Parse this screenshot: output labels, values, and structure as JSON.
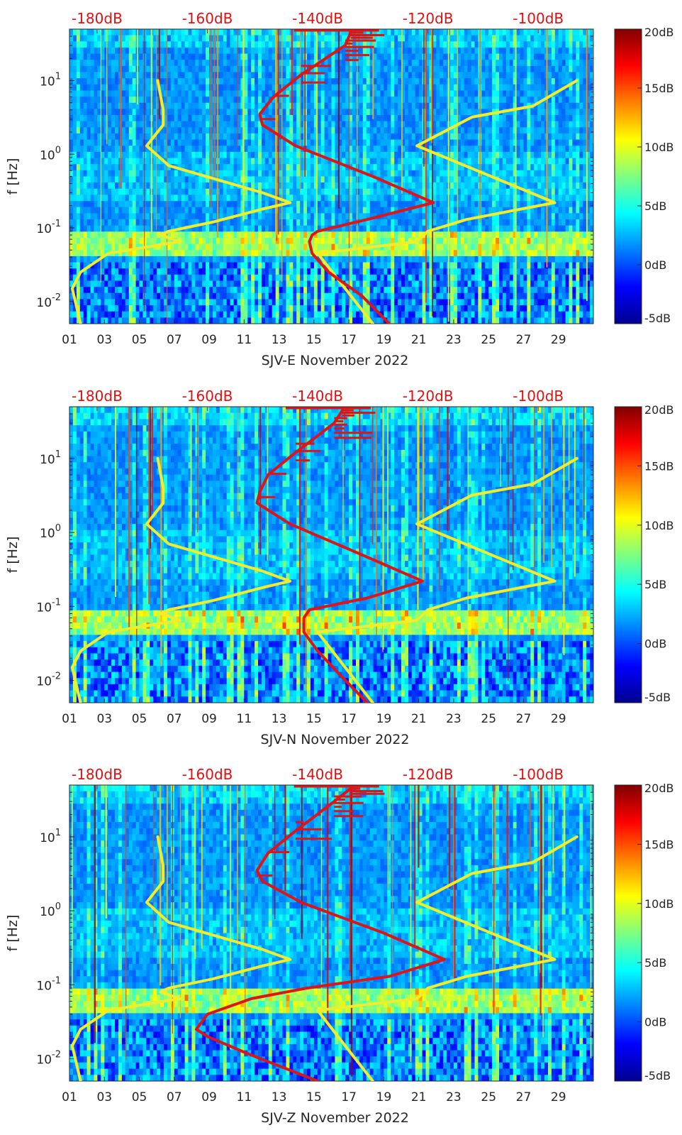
{
  "colors": {
    "background_ramp": [
      "#00008f",
      "#0000ff",
      "#0080ff",
      "#00ffff",
      "#80ff80",
      "#ffff00",
      "#ff8000",
      "#ff0000",
      "#800000"
    ],
    "noise_model_low_high": "#f2ec2a",
    "psd_reference": "#e01414",
    "text": "#262626"
  },
  "chart_data": [
    {
      "type": "heatmap",
      "title": "SJV-E November 2022",
      "xlabel": "SJV-E November 2022",
      "ylabel": "f [Hz]",
      "x_ticks": [
        "01",
        "03",
        "05",
        "07",
        "09",
        "11",
        "13",
        "15",
        "17",
        "19",
        "21",
        "23",
        "25",
        "27",
        "29"
      ],
      "y_ticks": [
        "10^-2",
        "10^-1",
        "10^0",
        "10^1"
      ],
      "y_scale": "log",
      "ylim_hz": [
        0.005,
        50
      ],
      "xlim_day": [
        1,
        31
      ],
      "top_axis_ticks": [
        "-180dB",
        "-160dB",
        "-140dB",
        "-120dB",
        "-100dB"
      ],
      "top_axis_range_db": [
        -185,
        -90
      ],
      "colorbar": {
        "ticks": [
          "20dB",
          "15dB",
          "10dB",
          "5dB",
          "0dB",
          "-5dB"
        ],
        "range_db": [
          -5,
          20
        ]
      },
      "series": [
        {
          "role": "low-noise-model",
          "color": "#f2ec2a",
          "points": [
            [
              -183.0,
              0.005
            ],
            [
              -184.5,
              0.015
            ],
            [
              -183.0,
              0.025
            ],
            [
              -178.0,
              0.045
            ],
            [
              -165.0,
              0.065
            ],
            [
              -168.5,
              0.08
            ],
            [
              -167.0,
              0.09
            ],
            [
              -159.0,
              0.12
            ],
            [
              -150.0,
              0.18
            ],
            [
              -145.0,
              0.22
            ],
            [
              -150.0,
              0.3
            ],
            [
              -167.0,
              0.7
            ],
            [
              -171.0,
              1.3
            ],
            [
              -168.0,
              2.5
            ],
            [
              -168.0,
              4.0
            ],
            [
              -169.0,
              10.0
            ]
          ]
        },
        {
          "role": "high-noise-model",
          "color": "#f2ec2a",
          "points": [
            [
              -130.0,
              0.005
            ],
            [
              -140.0,
              0.045
            ],
            [
              -122.0,
              0.065
            ],
            [
              -120.0,
              0.09
            ],
            [
              -113.0,
              0.13
            ],
            [
              -97.0,
              0.22
            ],
            [
              -122.0,
              1.3
            ],
            [
              -112.0,
              3.2
            ],
            [
              -101.0,
              4.5
            ],
            [
              -93.0,
              10.0
            ]
          ]
        },
        {
          "role": "psd-reference",
          "color": "#e01414",
          "points": [
            [
              -127.0,
              0.005
            ],
            [
              -132.0,
              0.012
            ],
            [
              -138.0,
              0.025
            ],
            [
              -141.0,
              0.045
            ],
            [
              -141.5,
              0.065
            ],
            [
              -141.0,
              0.08
            ],
            [
              -140.0,
              0.09
            ],
            [
              -131.0,
              0.13
            ],
            [
              -119.0,
              0.22
            ],
            [
              -130.0,
              0.5
            ],
            [
              -144.0,
              1.3
            ],
            [
              -150.0,
              2.5
            ],
            [
              -150.5,
              3.5
            ],
            [
              -148.0,
              6.0
            ],
            [
              -143.0,
              12.0
            ],
            [
              -135.0,
              30.0
            ],
            [
              -134.0,
              45.0
            ]
          ]
        }
      ]
    },
    {
      "type": "heatmap",
      "title": "SJV-N November 2022",
      "xlabel": "SJV-N November 2022",
      "ylabel": "f [Hz]",
      "x_ticks": [
        "01",
        "03",
        "05",
        "07",
        "09",
        "11",
        "13",
        "15",
        "17",
        "19",
        "21",
        "23",
        "25",
        "27",
        "29"
      ],
      "y_ticks": [
        "10^-2",
        "10^-1",
        "10^0",
        "10^1"
      ],
      "y_scale": "log",
      "ylim_hz": [
        0.005,
        50
      ],
      "xlim_day": [
        1,
        31
      ],
      "top_axis_ticks": [
        "-180dB",
        "-160dB",
        "-140dB",
        "-120dB",
        "-100dB"
      ],
      "top_axis_range_db": [
        -185,
        -90
      ],
      "colorbar": {
        "ticks": [
          "20dB",
          "15dB",
          "10dB",
          "5dB",
          "0dB",
          "-5dB"
        ],
        "range_db": [
          -5,
          20
        ]
      },
      "series": [
        {
          "role": "low-noise-model",
          "color": "#f2ec2a",
          "points": [
            [
              -183.0,
              0.005
            ],
            [
              -184.5,
              0.015
            ],
            [
              -183.0,
              0.025
            ],
            [
              -178.0,
              0.045
            ],
            [
              -165.0,
              0.065
            ],
            [
              -168.5,
              0.08
            ],
            [
              -167.0,
              0.09
            ],
            [
              -159.0,
              0.12
            ],
            [
              -150.0,
              0.18
            ],
            [
              -145.0,
              0.22
            ],
            [
              -150.0,
              0.3
            ],
            [
              -167.0,
              0.7
            ],
            [
              -171.0,
              1.3
            ],
            [
              -168.0,
              2.5
            ],
            [
              -168.0,
              4.0
            ],
            [
              -169.0,
              10.0
            ]
          ]
        },
        {
          "role": "high-noise-model",
          "color": "#f2ec2a",
          "points": [
            [
              -130.0,
              0.005
            ],
            [
              -140.0,
              0.045
            ],
            [
              -122.0,
              0.065
            ],
            [
              -120.0,
              0.09
            ],
            [
              -113.0,
              0.13
            ],
            [
              -97.0,
              0.22
            ],
            [
              -122.0,
              1.3
            ],
            [
              -112.0,
              3.2
            ],
            [
              -101.0,
              4.5
            ],
            [
              -93.0,
              10.0
            ]
          ]
        },
        {
          "role": "psd-reference",
          "color": "#e01414",
          "points": [
            [
              -131.0,
              0.005
            ],
            [
              -136.0,
              0.012
            ],
            [
              -140.0,
              0.025
            ],
            [
              -142.5,
              0.045
            ],
            [
              -142.5,
              0.07
            ],
            [
              -141.5,
              0.09
            ],
            [
              -131.0,
              0.13
            ],
            [
              -121.0,
              0.22
            ],
            [
              -132.0,
              0.5
            ],
            [
              -145.0,
              1.3
            ],
            [
              -151.0,
              2.5
            ],
            [
              -150.5,
              3.5
            ],
            [
              -149.0,
              6.0
            ],
            [
              -144.0,
              12.0
            ],
            [
              -137.0,
              30.0
            ],
            [
              -135.5,
              45.0
            ]
          ]
        }
      ]
    },
    {
      "type": "heatmap",
      "title": "SJV-Z November 2022",
      "xlabel": "SJV-Z November 2022",
      "ylabel": "f [Hz]",
      "x_ticks": [
        "01",
        "03",
        "05",
        "07",
        "09",
        "11",
        "13",
        "15",
        "17",
        "19",
        "21",
        "23",
        "25",
        "27",
        "29"
      ],
      "y_ticks": [
        "10^-2",
        "10^-1",
        "10^0",
        "10^1"
      ],
      "y_scale": "log",
      "ylim_hz": [
        0.005,
        50
      ],
      "xlim_day": [
        1,
        31
      ],
      "top_axis_ticks": [
        "-180dB",
        "-160dB",
        "-140dB",
        "-120dB",
        "-100dB"
      ],
      "top_axis_range_db": [
        -185,
        -90
      ],
      "colorbar": {
        "ticks": [
          "20dB",
          "15dB",
          "10dB",
          "5dB",
          "0dB",
          "-5dB"
        ],
        "range_db": [
          -5,
          20
        ]
      },
      "series": [
        {
          "role": "low-noise-model",
          "color": "#f2ec2a",
          "points": [
            [
              -183.0,
              0.005
            ],
            [
              -184.5,
              0.015
            ],
            [
              -183.0,
              0.025
            ],
            [
              -178.0,
              0.045
            ],
            [
              -165.0,
              0.065
            ],
            [
              -168.5,
              0.08
            ],
            [
              -167.0,
              0.09
            ],
            [
              -159.0,
              0.12
            ],
            [
              -150.0,
              0.18
            ],
            [
              -145.0,
              0.22
            ],
            [
              -150.0,
              0.3
            ],
            [
              -167.0,
              0.7
            ],
            [
              -171.0,
              1.3
            ],
            [
              -168.0,
              2.5
            ],
            [
              -168.0,
              4.0
            ],
            [
              -169.0,
              10.0
            ]
          ]
        },
        {
          "role": "high-noise-model",
          "color": "#f2ec2a",
          "points": [
            [
              -130.0,
              0.005
            ],
            [
              -140.0,
              0.045
            ],
            [
              -122.0,
              0.065
            ],
            [
              -120.0,
              0.09
            ],
            [
              -113.0,
              0.13
            ],
            [
              -97.0,
              0.22
            ],
            [
              -122.0,
              1.3
            ],
            [
              -112.0,
              3.2
            ],
            [
              -101.0,
              4.5
            ],
            [
              -93.0,
              10.0
            ]
          ]
        },
        {
          "role": "psd-reference",
          "color": "#e01414",
          "points": [
            [
              -140.0,
              0.005
            ],
            [
              -153.0,
              0.012
            ],
            [
              -160.0,
              0.02
            ],
            [
              -162.0,
              0.025
            ],
            [
              -160.0,
              0.04
            ],
            [
              -152.0,
              0.065
            ],
            [
              -142.0,
              0.09
            ],
            [
              -127.0,
              0.13
            ],
            [
              -117.0,
              0.22
            ],
            [
              -128.0,
              0.5
            ],
            [
              -143.0,
              1.3
            ],
            [
              -150.0,
              2.5
            ],
            [
              -151.0,
              3.5
            ],
            [
              -149.0,
              6.0
            ],
            [
              -144.0,
              12.0
            ],
            [
              -137.0,
              30.0
            ],
            [
              -134.0,
              45.0
            ]
          ]
        }
      ]
    }
  ]
}
